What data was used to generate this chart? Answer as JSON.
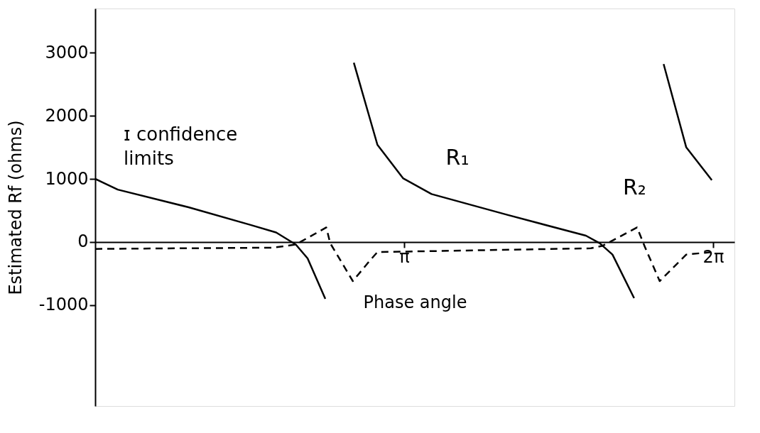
{
  "chart_data": {
    "type": "line",
    "xlabel": "Phase angle",
    "ylabel": "Estimated Rf (ohms)",
    "xlim": [
      0,
      6.5
    ],
    "ylim": [
      -2600,
      3700
    ],
    "xticks": [
      {
        "value": 3.1416,
        "label": "π"
      },
      {
        "value": 6.2832,
        "label": "2π"
      }
    ],
    "yticks": [
      -1000,
      0,
      1000,
      2000,
      3000
    ],
    "grid": false,
    "marker": "none",
    "annotations": [
      "ɪ confidence limits"
    ],
    "series": [
      {
        "name": "R₁",
        "color": "#000000",
        "line_style": "solid",
        "x": [
          0,
          0.23,
          0.95,
          1.58,
          1.84,
          2.04,
          2.16,
          2.34,
          2.5,
          2.63,
          2.87,
          3.13,
          3.42,
          4.19,
          4.99,
          5.13,
          5.26,
          5.48,
          5.6,
          5.78,
          6.01,
          6.27
        ],
        "values": [
          1000,
          830,
          550,
          270,
          150,
          -40,
          -260,
          -900,
          null,
          2840,
          1540,
          1010,
          760,
          430,
          100,
          -20,
          -200,
          -890,
          null,
          2820,
          1500,
          980
        ]
      },
      {
        "name": "R₂",
        "color": "#000000",
        "line_style": "dashed",
        "x": [
          0,
          1.81,
          2.04,
          2.35,
          2.39,
          2.62,
          2.79,
          2.87,
          5.04,
          5.16,
          5.51,
          5.59,
          5.74,
          6.01,
          6.27
        ],
        "values": [
          -110,
          -90,
          -40,
          230,
          -20,
          -620,
          -300,
          -160,
          -100,
          -60,
          230,
          -80,
          -620,
          -200,
          -160
        ]
      }
    ]
  }
}
